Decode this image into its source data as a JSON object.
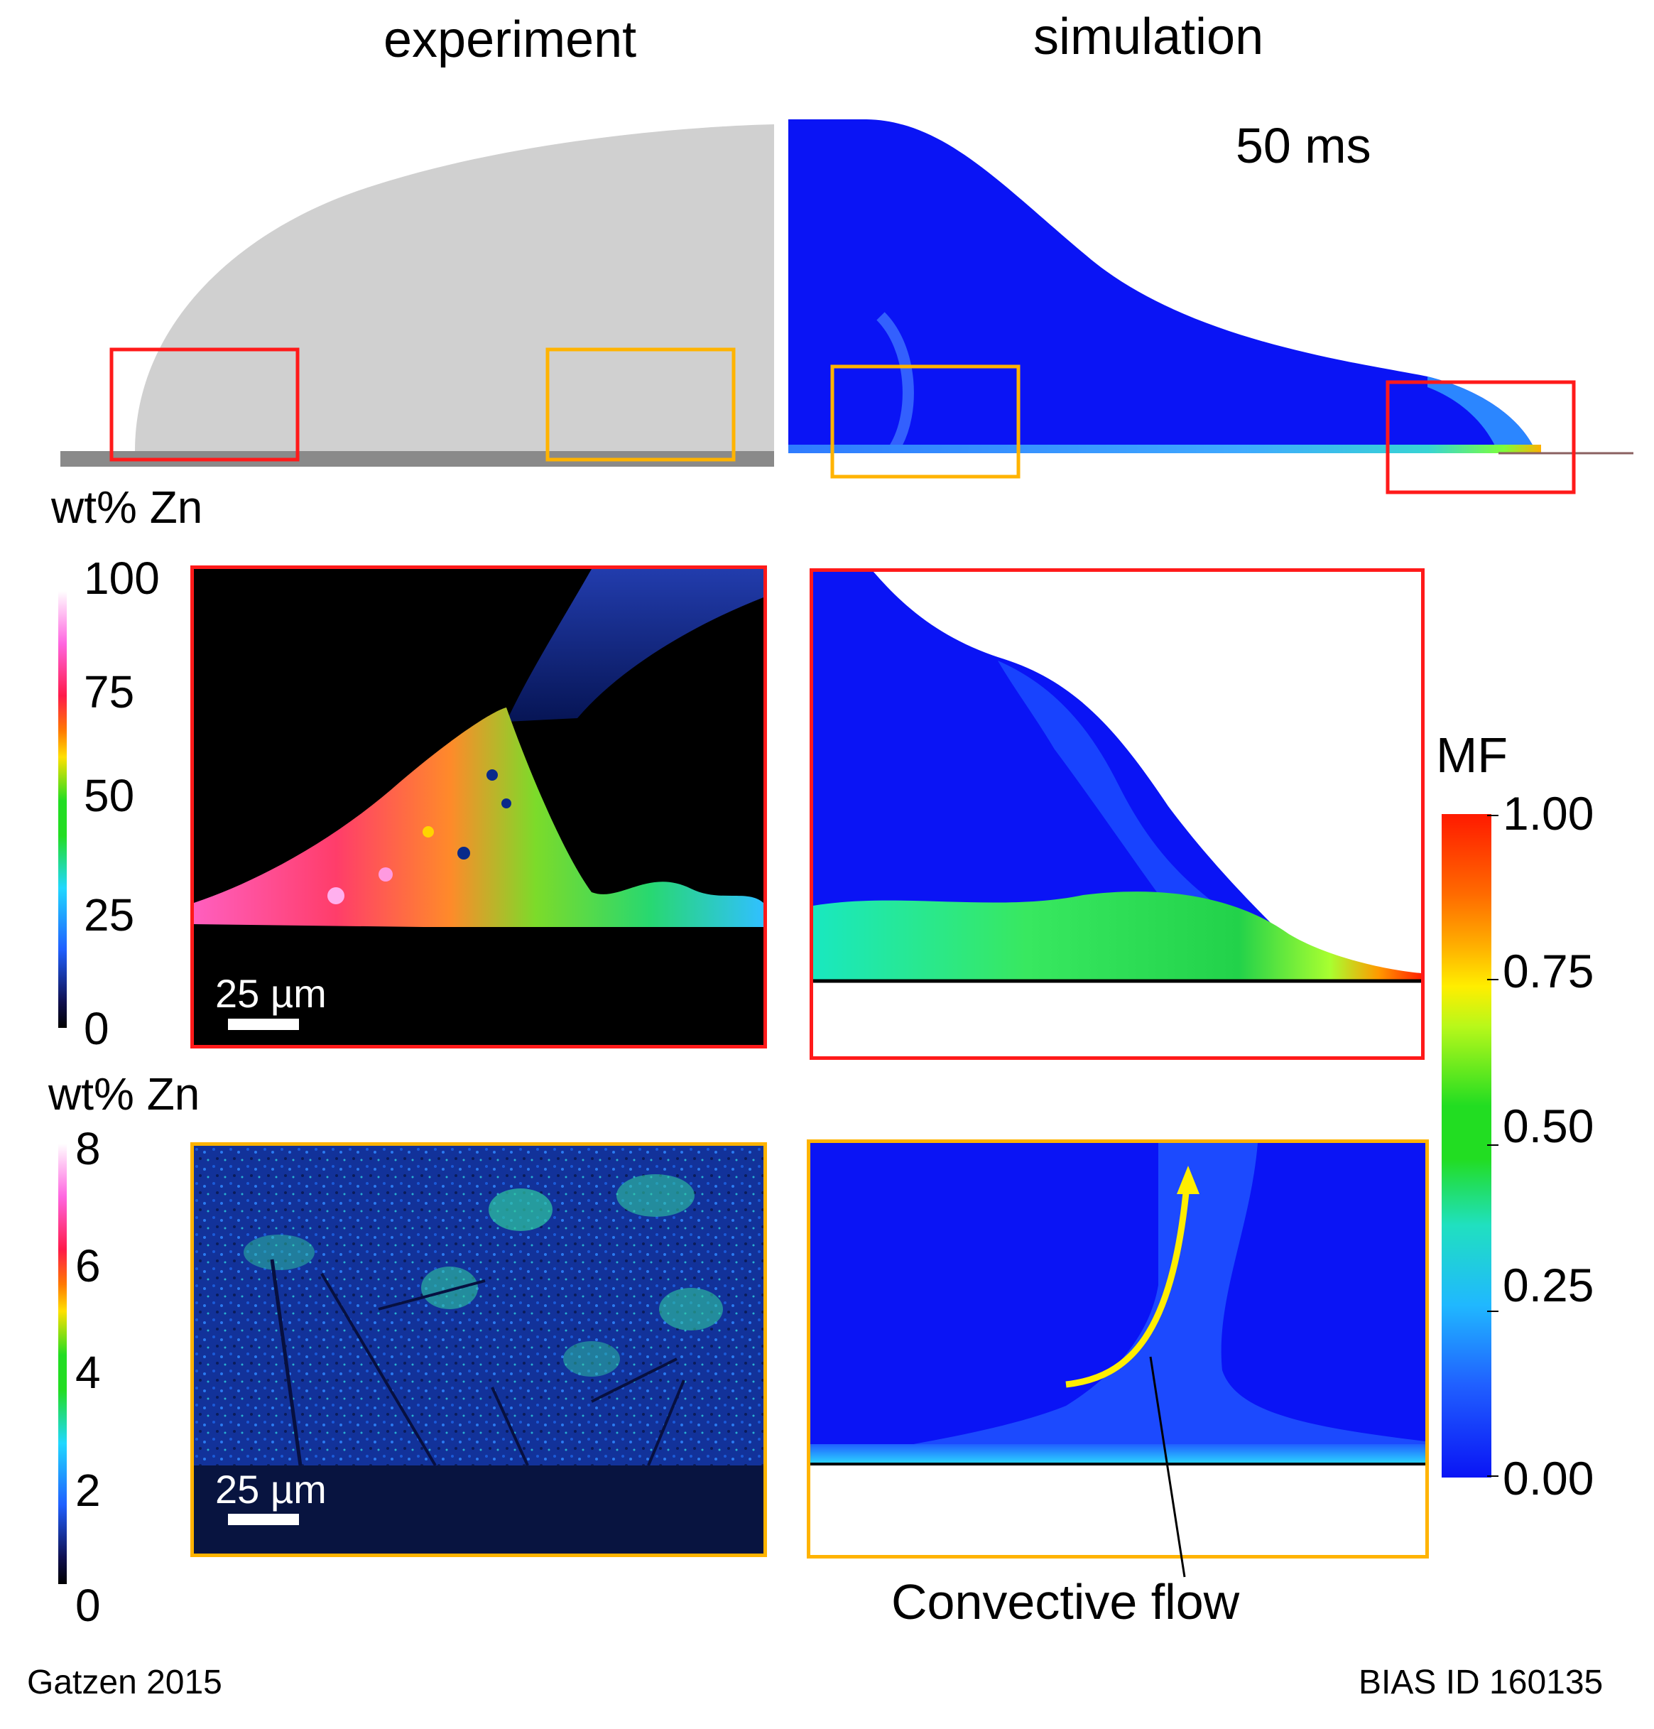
{
  "headers": {
    "experiment": "experiment",
    "simulation": "simulation"
  },
  "time_label": "50 ms",
  "zn_scale_top": {
    "label": "wt% Zn",
    "ticks": [
      "100",
      "75",
      "50",
      "25",
      "0"
    ]
  },
  "zn_scale_bottom": {
    "label": "wt% Zn",
    "ticks": [
      "8",
      "6",
      "4",
      "2",
      "0"
    ]
  },
  "scale_bars": {
    "top": "25 µm",
    "bottom": "25 µm"
  },
  "mf_scale": {
    "label": "MF",
    "ticks": [
      "1.00",
      "0.75",
      "0.50",
      "0.25",
      "0.00"
    ]
  },
  "annotation": "Convective flow",
  "footer": {
    "left": "Gatzen 2015",
    "right": "BIAS ID 160135"
  },
  "colors": {
    "red_frame": "#ff1a1a",
    "orange_frame": "#ffb300",
    "sim_blue": "#0a14f5",
    "droplet_grey": "#d0d0d0",
    "substrate_grey": "#8a8a8a",
    "flow_arrow": "#ffee00"
  }
}
